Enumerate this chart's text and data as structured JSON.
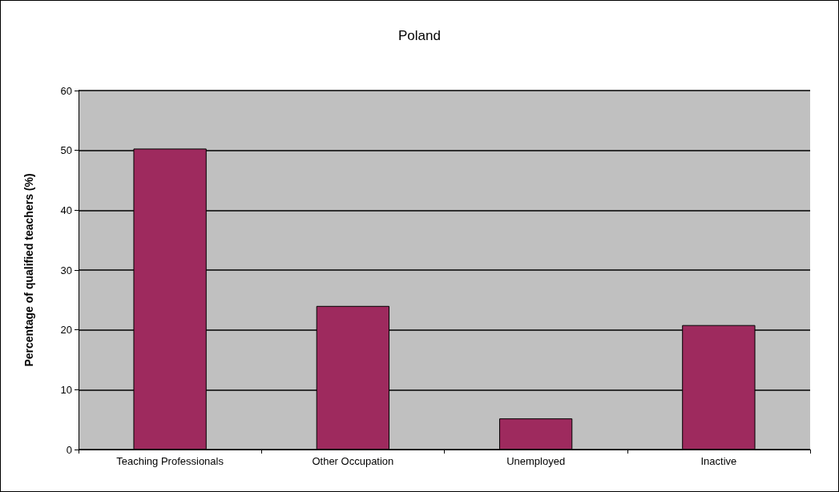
{
  "chart_data": {
    "type": "bar",
    "title": "Poland",
    "ylabel": "Percentage of qualified teachers (%)",
    "categories": [
      "Teaching Professionals",
      "Other Occupation",
      "Unemployed",
      "Inactive"
    ],
    "values": [
      50.3,
      24,
      5.2,
      20.8
    ],
    "color": "#9e2a5e",
    "ylim": [
      0,
      60
    ],
    "yticks": [
      0,
      10,
      20,
      30,
      40,
      50,
      60
    ],
    "grid": "y"
  }
}
